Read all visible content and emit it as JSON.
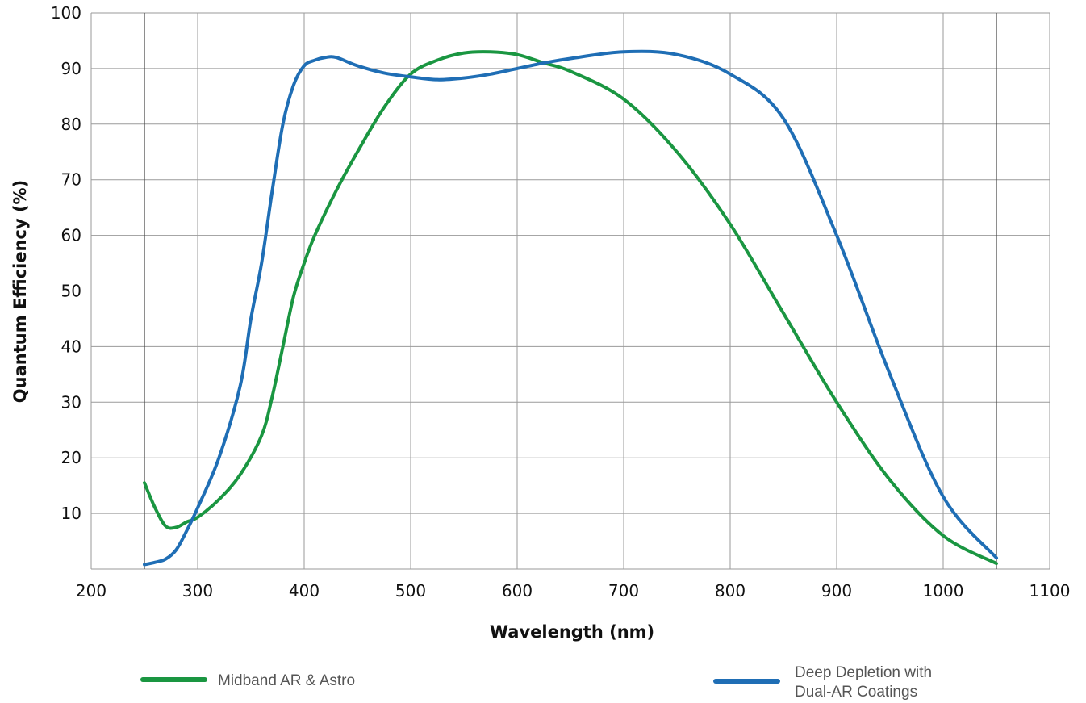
{
  "chart_data": {
    "type": "line",
    "title": "",
    "xlabel": "Wavelength (nm)",
    "ylabel": "Quantum Efficiency (%)",
    "xlim": [
      200,
      1100
    ],
    "ylim": [
      0,
      100
    ],
    "xticks": [
      200,
      300,
      400,
      500,
      600,
      700,
      800,
      900,
      1000,
      1100
    ],
    "yticks": [
      10,
      20,
      30,
      40,
      50,
      60,
      70,
      80,
      90,
      100
    ],
    "grid": true,
    "legend_position": "bottom",
    "series": [
      {
        "name": "Midband AR & Astro",
        "color": "#1a9641",
        "x": [
          250,
          260,
          270,
          280,
          290,
          300,
          320,
          340,
          360,
          370,
          380,
          390,
          400,
          410,
          430,
          450,
          475,
          500,
          525,
          550,
          575,
          600,
          625,
          650,
          700,
          750,
          800,
          850,
          900,
          950,
          1000,
          1050
        ],
        "y": [
          15.5,
          11,
          7.7,
          7.5,
          8.5,
          9.3,
          12.5,
          17,
          24,
          31,
          40,
          49,
          55,
          60,
          68,
          75,
          83,
          89,
          91.5,
          92.8,
          93,
          92.5,
          91,
          89.5,
          84.5,
          75,
          62,
          46,
          30,
          16,
          6,
          1
        ]
      },
      {
        "name": "Deep Depletion with Dual-AR Coatings",
        "color": "#1f6eb5",
        "x": [
          250,
          260,
          270,
          280,
          290,
          300,
          320,
          340,
          350,
          360,
          370,
          380,
          390,
          400,
          410,
          420,
          430,
          450,
          475,
          500,
          525,
          550,
          575,
          600,
          625,
          650,
          700,
          750,
          800,
          850,
          900,
          950,
          1000,
          1050
        ],
        "y": [
          0.8,
          1.2,
          1.8,
          3.5,
          7,
          11,
          20,
          33,
          45,
          55,
          68,
          80,
          87,
          90.5,
          91.5,
          92,
          92,
          90.5,
          89.2,
          88.5,
          88,
          88.3,
          89,
          90,
          91,
          91.8,
          93,
          92.5,
          89,
          81,
          60,
          35,
          13,
          2
        ]
      }
    ]
  }
}
